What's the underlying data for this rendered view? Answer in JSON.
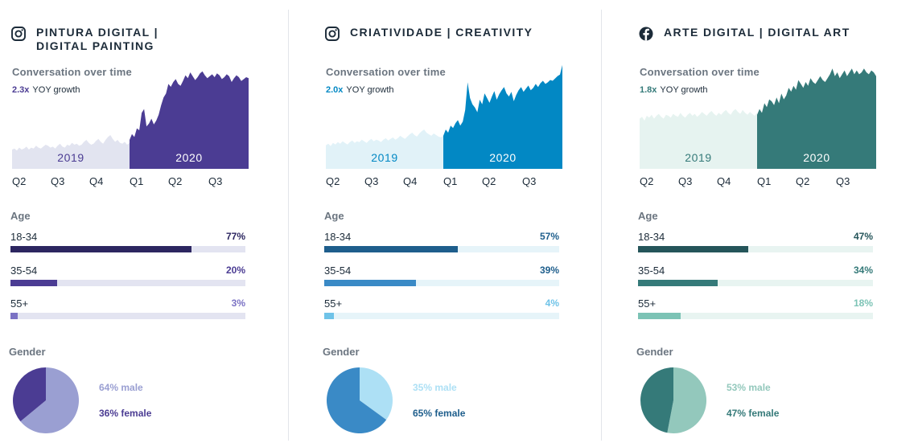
{
  "chart_data": [
    {
      "type": "area",
      "platform": "instagram",
      "title": "PINTURA DIGITAL |\nDIGITAL PAINTING",
      "subtitle": "Conversation over time",
      "growth_value": "2.3x",
      "growth_label": "YOY growth",
      "period_labels": [
        "2019",
        "2020"
      ],
      "quarter_labels": [
        "Q2",
        "Q3",
        "Q4",
        "Q1",
        "Q2",
        "Q3"
      ],
      "colors": {
        "light": "#e2e4f0",
        "dark": "#4b3c93",
        "year_light": "#4b3c93",
        "year_dark": "#ffffff",
        "growth": "#4b3c93"
      },
      "series_2019": [
        20,
        21,
        19,
        22,
        20,
        21,
        23,
        20,
        22,
        21,
        24,
        22,
        21,
        23,
        25,
        24,
        22,
        23,
        21,
        24,
        26,
        23,
        22,
        25,
        24,
        27,
        25,
        26,
        24,
        25,
        28,
        30,
        27,
        25,
        26,
        29,
        31,
        28,
        26,
        30,
        33,
        35,
        31,
        28,
        30,
        27,
        26,
        28,
        25,
        27
      ],
      "series_2020": [
        30,
        36,
        33,
        42,
        40,
        58,
        62,
        44,
        47,
        52,
        46,
        50,
        56,
        66,
        74,
        78,
        88,
        85,
        90,
        93,
        88,
        86,
        91,
        97,
        94,
        100,
        96,
        92,
        95,
        99,
        101,
        97,
        94,
        96,
        98,
        95,
        99,
        97,
        93,
        95,
        98,
        96,
        90,
        94,
        97,
        95,
        91,
        93,
        95,
        94
      ],
      "ylim": [
        0,
        110
      ],
      "age": {
        "title": "Age",
        "rows": [
          {
            "label": "18-34",
            "value": 77,
            "display": "77%",
            "color": "#2c2660",
            "pct_color": "#2c2660"
          },
          {
            "label": "35-54",
            "value": 20,
            "display": "20%",
            "color": "#4b3c93",
            "pct_color": "#4b3c93"
          },
          {
            "label": "55+",
            "value": 3,
            "display": "3%",
            "color": "#7b72c4",
            "pct_color": "#7b72c4"
          }
        ],
        "track_color": "#e3e4f1"
      },
      "gender": {
        "title": "Gender",
        "slices": [
          {
            "label": "64% male",
            "value": 64,
            "color": "#9a9fd2"
          },
          {
            "label": "36% female",
            "value": 36,
            "color": "#4b3c93"
          }
        ],
        "legend_colors": [
          "#9a9fd2",
          "#4b3c93"
        ]
      }
    },
    {
      "type": "area",
      "platform": "instagram",
      "title": "CRIATIVIDADE | CREATIVITY",
      "subtitle": "Conversation over time",
      "growth_value": "2.0x",
      "growth_label": "YOY growth",
      "period_labels": [
        "2019",
        "2020"
      ],
      "quarter_labels": [
        "Q2",
        "Q3",
        "Q4",
        "Q1",
        "Q2",
        "Q3"
      ],
      "colors": {
        "light": "#e1f2f8",
        "dark": "#0288c4",
        "year_light": "#0288c4",
        "year_dark": "#ffffff",
        "growth": "#0288c4"
      },
      "series_2019": [
        30,
        32,
        29,
        33,
        31,
        34,
        32,
        35,
        33,
        31,
        34,
        36,
        33,
        35,
        34,
        37,
        35,
        33,
        36,
        38,
        35,
        37,
        36,
        34,
        37,
        39,
        36,
        38,
        40,
        37,
        39,
        42,
        40,
        38,
        41,
        44,
        46,
        43,
        41,
        45,
        48,
        50,
        46,
        44,
        42,
        45,
        43,
        41,
        40,
        42
      ],
      "series_2020": [
        42,
        50,
        46,
        55,
        52,
        58,
        62,
        55,
        60,
        75,
        110,
        90,
        82,
        78,
        72,
        88,
        82,
        96,
        90,
        84,
        92,
        99,
        88,
        95,
        100,
        104,
        96,
        92,
        98,
        86,
        94,
        100,
        104,
        98,
        102,
        106,
        100,
        103,
        108,
        104,
        109,
        112,
        108,
        110,
        113,
        112,
        115,
        118,
        120,
        132
      ],
      "ylim": [
        0,
        135
      ],
      "age": {
        "title": "Age",
        "rows": [
          {
            "label": "18-34",
            "value": 57,
            "display": "57%",
            "color": "#1e5e8c",
            "pct_color": "#1e5e8c"
          },
          {
            "label": "35-54",
            "value": 39,
            "display": "39%",
            "color": "#3a8ac6",
            "pct_color": "#1e5e8c"
          },
          {
            "label": "55+",
            "value": 4,
            "display": "4%",
            "color": "#6fc3e8",
            "pct_color": "#6fc3e8"
          }
        ],
        "track_color": "#e6f4f9"
      },
      "gender": {
        "title": "Gender",
        "slices": [
          {
            "label": "35% male",
            "value": 35,
            "color": "#ade0f5"
          },
          {
            "label": "65% female",
            "value": 65,
            "color": "#3a8ac6"
          }
        ],
        "legend_colors": [
          "#ade0f5",
          "#1e5e8c"
        ]
      }
    },
    {
      "type": "area",
      "platform": "facebook",
      "title": "ARTE DIGITAL | DIGITAL ART",
      "subtitle": "Conversation over time",
      "growth_value": "1.8x",
      "growth_label": "YOY growth",
      "period_labels": [
        "2019",
        "2020"
      ],
      "quarter_labels": [
        "Q2",
        "Q3",
        "Q4",
        "Q1",
        "Q2",
        "Q3"
      ],
      "colors": {
        "light": "#e6f3f0",
        "dark": "#357a79",
        "year_light": "#357a79",
        "year_dark": "#ffffff",
        "growth": "#357a79"
      },
      "series_2019": [
        52,
        54,
        50,
        55,
        53,
        56,
        52,
        55,
        57,
        54,
        52,
        56,
        55,
        53,
        57,
        55,
        54,
        58,
        55,
        53,
        56,
        58,
        55,
        57,
        54,
        56,
        59,
        57,
        55,
        58,
        60,
        57,
        55,
        58,
        56,
        59,
        61,
        58,
        56,
        60,
        62,
        59,
        57,
        61,
        58,
        56,
        59,
        57,
        55,
        58
      ],
      "series_2020": [
        56,
        62,
        58,
        68,
        64,
        72,
        70,
        66,
        74,
        68,
        78,
        72,
        76,
        84,
        80,
        86,
        82,
        92,
        88,
        84,
        90,
        86,
        94,
        90,
        88,
        92,
        96,
        92,
        90,
        94,
        98,
        104,
        96,
        100,
        94,
        98,
        102,
        96,
        100,
        104,
        98,
        102,
        98,
        100,
        104,
        100,
        98,
        102,
        100,
        96
      ],
      "ylim": [
        0,
        110
      ],
      "age": {
        "title": "Age",
        "rows": [
          {
            "label": "18-34",
            "value": 47,
            "display": "47%",
            "color": "#25555a",
            "pct_color": "#25555a"
          },
          {
            "label": "35-54",
            "value": 34,
            "display": "34%",
            "color": "#357a79",
            "pct_color": "#357a79"
          },
          {
            "label": "55+",
            "value": 18,
            "display": "18%",
            "color": "#7cc3b5",
            "pct_color": "#7cc3b5"
          }
        ],
        "track_color": "#e8f4f1"
      },
      "gender": {
        "title": "Gender",
        "slices": [
          {
            "label": "53% male",
            "value": 53,
            "color": "#93c8bc"
          },
          {
            "label": "47% female",
            "value": 47,
            "color": "#357a79"
          }
        ],
        "legend_colors": [
          "#93c8bc",
          "#357a79"
        ]
      }
    }
  ]
}
